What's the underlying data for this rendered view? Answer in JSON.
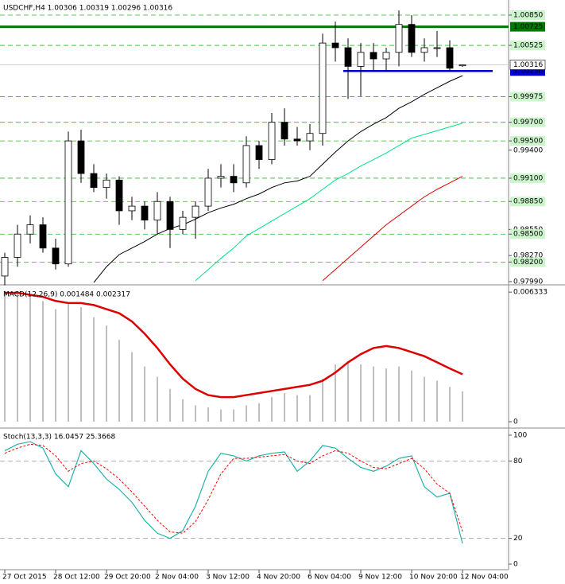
{
  "chart_data": [
    {
      "type": "candlestick",
      "title": "USDCHF,H4  1.00306 1.00319 1.00296 1.00316",
      "categories": [
        "27 Oct 2015",
        null,
        null,
        null,
        "28 Oct 12:00",
        null,
        null,
        null,
        "29 Oct 20:00",
        null,
        null,
        null,
        "2 Nov 04:00",
        null,
        null,
        null,
        "3 Nov 12:00",
        null,
        null,
        null,
        "4 Nov 20:00",
        null,
        null,
        null,
        "6 Nov 04:00",
        null,
        null,
        null,
        "9 Nov 12:00",
        null,
        null,
        null,
        "10 Nov 20:00",
        null,
        null,
        null,
        "12 Nov 04:00"
      ],
      "open": [
        0.9805,
        0.9825,
        0.985,
        0.986,
        0.9835,
        0.9818,
        0.995,
        0.9915,
        0.99,
        0.9908,
        0.9875,
        0.988,
        0.9865,
        0.9885,
        0.9855,
        0.9868,
        0.988,
        0.991,
        0.9912,
        0.9905,
        0.9945,
        0.993,
        0.997,
        0.9952,
        0.995,
        0.9958,
        1.0055,
        1.005,
        1.003,
        1.0045,
        1.0038,
        1.0045,
        1.0075,
        1.0045,
        1.005,
        1.005,
        1.00306
      ],
      "high": [
        0.983,
        0.986,
        0.987,
        0.9868,
        0.9845,
        0.996,
        0.9962,
        0.9925,
        0.9915,
        0.9912,
        0.989,
        0.9885,
        0.9895,
        0.989,
        0.9875,
        0.9885,
        0.992,
        0.9925,
        0.9925,
        0.9955,
        0.995,
        0.998,
        0.9985,
        0.9965,
        0.9968,
        1.0065,
        1.0078,
        1.006,
        1.0055,
        1.0055,
        1.005,
        1.009,
        1.0085,
        1.006,
        1.0068,
        1.0058,
        1.00319
      ],
      "low": [
        0.9795,
        0.9815,
        0.984,
        0.983,
        0.9812,
        0.9815,
        0.9905,
        0.9895,
        0.9888,
        0.986,
        0.9865,
        0.9855,
        0.985,
        0.9835,
        0.985,
        0.9845,
        0.9875,
        0.99,
        0.9895,
        0.99,
        0.992,
        0.9925,
        0.9945,
        0.9945,
        0.994,
        0.9945,
        1.0035,
        0.9995,
        0.9998,
        1.0025,
        1.0025,
        1.003,
        1.004,
        1.0035,
        1.004,
        1.0025,
        1.00296
      ],
      "close": [
        0.9825,
        0.985,
        0.986,
        0.9835,
        0.9818,
        0.995,
        0.9915,
        0.99,
        0.9908,
        0.9875,
        0.988,
        0.9865,
        0.9885,
        0.9855,
        0.9868,
        0.988,
        0.991,
        0.9912,
        0.9905,
        0.9945,
        0.993,
        0.997,
        0.9952,
        0.995,
        0.9958,
        1.0055,
        1.005,
        1.003,
        1.0045,
        1.0038,
        1.0045,
        1.0075,
        1.0045,
        1.005,
        1.005,
        1.0028,
        1.00316
      ],
      "lines": [
        {
          "color": "#000000",
          "values": [
            null,
            null,
            null,
            null,
            null,
            null,
            null,
            0.9798,
            0.9815,
            0.9828,
            0.9835,
            0.9842,
            0.985,
            0.9856,
            0.986,
            0.9866,
            0.9873,
            0.9878,
            0.9882,
            0.9888,
            0.9893,
            0.99,
            0.9905,
            0.9907,
            0.9912,
            0.9925,
            0.9938,
            0.995,
            0.996,
            0.9968,
            0.9975,
            0.9985,
            0.9992,
            1.0,
            1.0007,
            1.0014,
            1.002
          ]
        },
        {
          "color": "#00e08a",
          "values": [
            null,
            null,
            null,
            null,
            null,
            null,
            null,
            null,
            null,
            null,
            null,
            null,
            null,
            null,
            null,
            0.98,
            0.9812,
            0.9824,
            0.9835,
            0.9848,
            0.9856,
            0.9864,
            0.9872,
            0.988,
            0.9888,
            0.9898,
            0.9908,
            0.9915,
            0.9923,
            0.993,
            0.9937,
            0.9945,
            0.9953,
            0.9957,
            0.9961,
            0.9965,
            0.9969
          ]
        },
        {
          "color": "#e00000",
          "values": [
            null,
            null,
            null,
            null,
            null,
            null,
            null,
            null,
            null,
            null,
            null,
            null,
            null,
            null,
            null,
            null,
            null,
            null,
            null,
            null,
            null,
            null,
            null,
            null,
            null,
            0.98,
            0.9812,
            0.9824,
            0.9836,
            0.9848,
            0.986,
            0.987,
            0.988,
            0.989,
            0.9898,
            0.9905,
            0.9912
          ]
        }
      ],
      "ylim": [
        0.97964,
        1.01012
      ],
      "yticks": [
        {
          "value": 1.0085,
          "label": "1.00850",
          "level": true
        },
        {
          "value": 1.00525,
          "label": "1.00525",
          "level": true
        },
        {
          "value": 0.99975,
          "label": "0.99975",
          "level": true
        },
        {
          "value": 0.997,
          "label": "0.99700",
          "level": true
        },
        {
          "value": 0.995,
          "label": "0.99500",
          "level": true
        },
        {
          "value": 0.994,
          "label": "0.99400"
        },
        {
          "value": 0.991,
          "label": "0.99100",
          "level": true
        },
        {
          "value": 0.9885,
          "label": "0.98850",
          "level": true
        },
        {
          "value": 0.9855,
          "label": "0.98550"
        },
        {
          "value": 0.985,
          "label": "0.98500",
          "level": true
        },
        {
          "value": 0.9827,
          "label": "0.98270"
        },
        {
          "value": 0.982,
          "label": "0.98200",
          "level": true
        },
        {
          "value": 0.9799,
          "label": "0.97990"
        }
      ],
      "hlines": [
        {
          "value": 1.00725,
          "label": "1.00725",
          "color": "#007700"
        },
        {
          "value": 1.0025,
          "label": "1.00250",
          "color": "#0000cc"
        }
      ],
      "bid": {
        "value": 1.00316,
        "label": "1.00316"
      }
    },
    {
      "type": "macd",
      "title": "MACD(12,26,9) 0.001484 0.002317",
      "values": [
        0.0064,
        0.0063,
        0.0062,
        0.0059,
        0.0055,
        0.0058,
        0.0056,
        0.0051,
        0.0047,
        0.004,
        0.0034,
        0.0027,
        0.0022,
        0.0016,
        0.0011,
        0.0008,
        0.0007,
        0.0006,
        0.0006,
        0.0008,
        0.0009,
        0.0012,
        0.0014,
        0.0013,
        0.0013,
        0.0021,
        0.0028,
        0.0029,
        0.0028,
        0.0027,
        0.0026,
        0.0027,
        0.0025,
        0.0022,
        0.002,
        0.0017,
        0.001484
      ],
      "signal": [
        0.0063,
        0.0063,
        0.0062,
        0.0061,
        0.0059,
        0.0058,
        0.0058,
        0.0057,
        0.0055,
        0.0053,
        0.0049,
        0.0043,
        0.0036,
        0.0028,
        0.0021,
        0.0016,
        0.0013,
        0.0012,
        0.0012,
        0.0013,
        0.0014,
        0.0015,
        0.0016,
        0.0017,
        0.0018,
        0.002,
        0.0024,
        0.0029,
        0.0033,
        0.0036,
        0.0037,
        0.0036,
        0.0034,
        0.0032,
        0.0029,
        0.0026,
        0.002317
      ],
      "color": "#c0c0c0",
      "signal_color": "#dd0000",
      "ylim": [
        -0.000272,
        0.00661
      ],
      "yticks": [
        0.006333,
        0
      ]
    },
    {
      "type": "stochastic",
      "title": "Stoch(13,3,3) 16.0457 25.3668",
      "main": [
        88,
        93,
        95,
        90,
        70,
        60,
        88,
        78,
        66,
        58,
        48,
        34,
        24,
        20,
        26,
        45,
        72,
        86,
        84,
        80,
        84,
        86,
        87,
        72,
        80,
        92,
        90,
        82,
        75,
        72,
        76,
        82,
        84,
        60,
        52,
        55,
        16.0457
      ],
      "signal": [
        86,
        90,
        93,
        92,
        84,
        72,
        78,
        80,
        74,
        66,
        56,
        45,
        34,
        25,
        24,
        33,
        50,
        70,
        82,
        82,
        83,
        84,
        85,
        80,
        78,
        84,
        88,
        86,
        80,
        75,
        74,
        78,
        82,
        74,
        62,
        55,
        25.3668
      ],
      "color": "#20b2aa",
      "signal_color": "#ff0000",
      "ylim": [
        -4.3,
        104.3
      ],
      "yticks": [
        100,
        80,
        20,
        0
      ],
      "levels": [
        80,
        20
      ]
    }
  ]
}
